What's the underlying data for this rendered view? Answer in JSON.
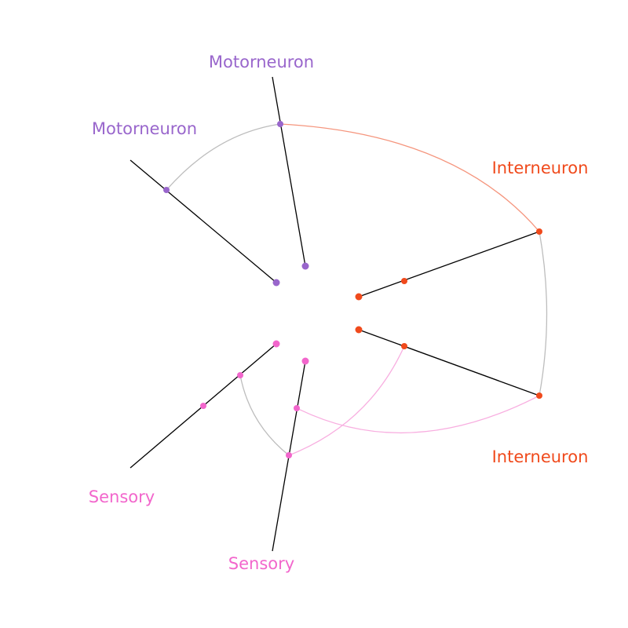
{
  "colors": {
    "background": "#ffffff",
    "axis_line": "#000000",
    "same_type_link": "#bdbdbd",
    "motorneuron": "#9966cc",
    "interneuron": "#f04a1c",
    "sensory": "#f266cc",
    "interneuron_link": "#f5957d",
    "sensory_link": "#f8aee0"
  },
  "diagram": {
    "type": "hive-plot",
    "axes": [
      {
        "id": "motor-a",
        "label": "Motorneuron",
        "color": "#9966cc"
      },
      {
        "id": "motor-b",
        "label": "Motorneuron",
        "color": "#9966cc"
      },
      {
        "id": "inter-a",
        "label": "Interneuron",
        "color": "#f04a1c"
      },
      {
        "id": "inter-b",
        "label": "Interneuron",
        "color": "#f04a1c"
      },
      {
        "id": "sensory-a",
        "label": "Sensory",
        "color": "#f266cc"
      },
      {
        "id": "sensory-b",
        "label": "Sensory",
        "color": "#f266cc"
      }
    ]
  }
}
